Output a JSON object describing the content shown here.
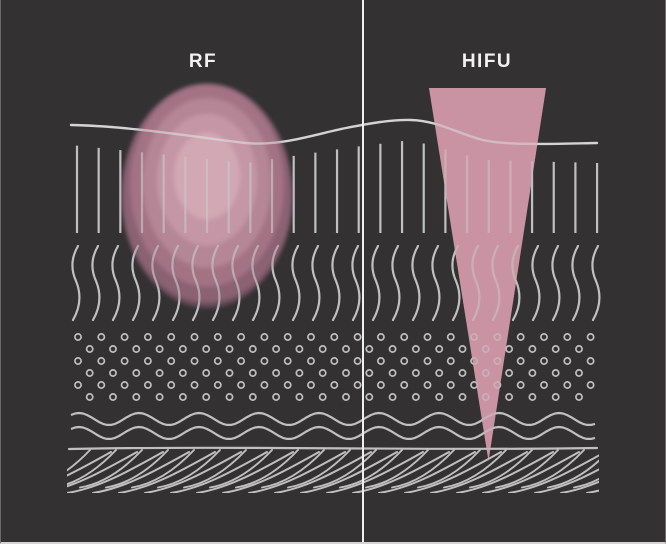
{
  "diagram": {
    "labels": {
      "left": "RF",
      "right": "HIFU"
    },
    "colors": {
      "background": "#333132",
      "texture_line": "#c8c8c8",
      "surface_line": "#dcdcdc",
      "divider": "#efefef",
      "label_text": "#f2f2f2",
      "rf_zone_core": "#d3a8b5",
      "rf_zone_band2": "#c597a6",
      "rf_zone_band3": "#b58696",
      "rf_zone_band4": "#a37384",
      "rf_zone_band5": "#8b6272",
      "rf_zone_edge": "#74525f",
      "hifu_beam": "#ca93a4"
    },
    "texture_layers": [
      "surface-contour-line",
      "vertical-hatch-lines",
      "vertical-squiggle-lines",
      "circle-dot-grid",
      "horizontal-wave-lines",
      "diagonal-braid-lines"
    ],
    "energy_zones": {
      "left": "rf-diffuse-heating-zone",
      "right": "hifu-focused-beam"
    }
  }
}
